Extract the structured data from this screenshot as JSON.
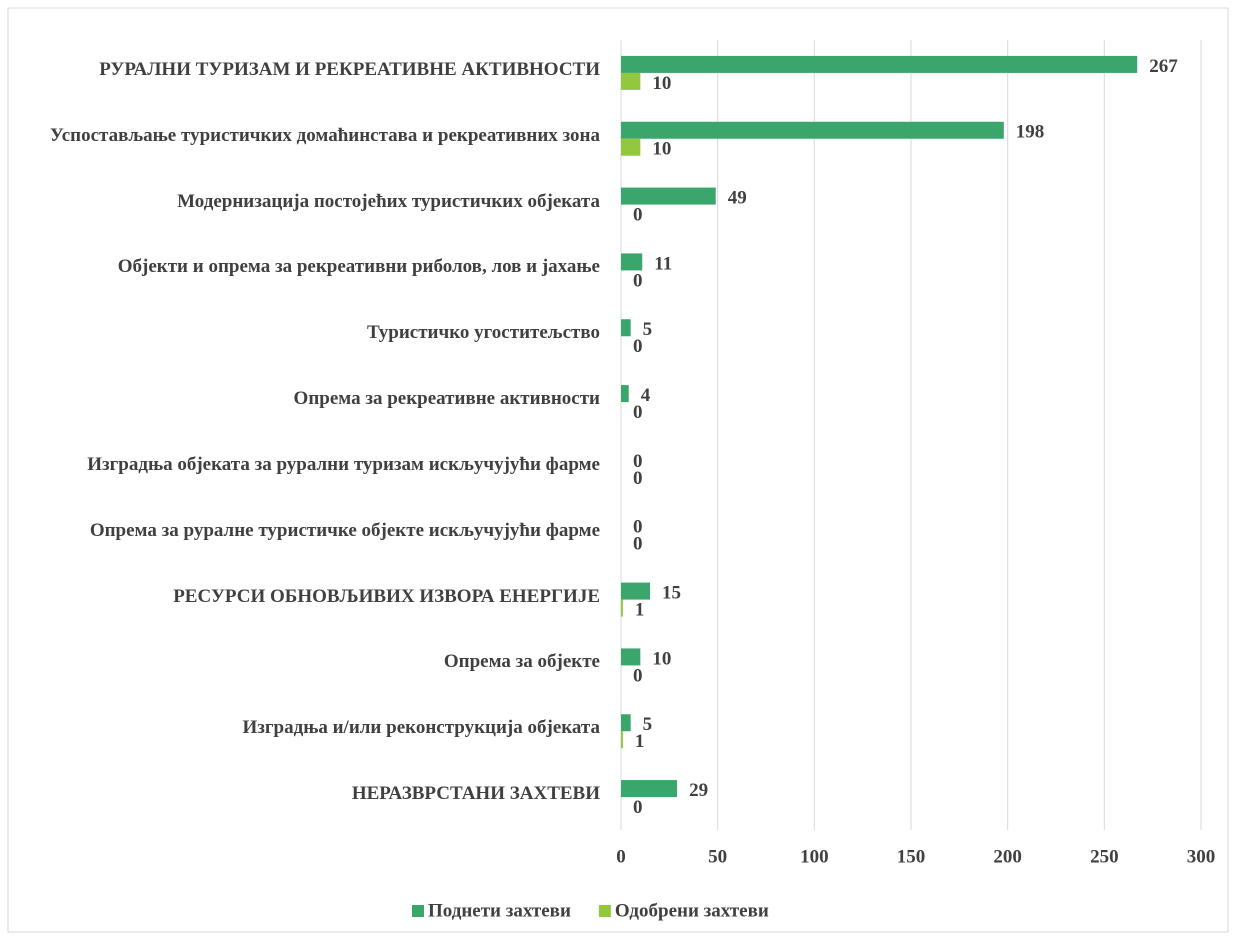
{
  "chart_data": {
    "type": "hbar",
    "categories": [
      "РУРАЛНИ ТУРИЗАМ И РЕКРЕАТИВНЕ АКТИВНОСТИ",
      "Успостављање туристичких домаћинстава и рекреативних зона",
      "Модернизација постојећих туристичких објеката",
      "Објекти и опрема за рекреативни риболов, лов и јахање",
      "Туристичко угоститељство",
      "Опрема за рекреативне активности",
      "Изградња објеката за рурални туризам искључујући фарме",
      "Опрема за руралне туристичке објекте искључујући фарме",
      "РЕСУРСИ ОБНОВЉИВИХ ИЗВОРА ЕНЕРГИЈЕ",
      "Опрема за објекте",
      "Изградња и/или реконструкција објеката",
      "НЕРАЗВРСТАНИ ЗАХТЕВИ"
    ],
    "series": [
      {
        "name": "Поднети захтеви",
        "color": "#3aa66c",
        "values": [
          267,
          198,
          49,
          11,
          5,
          4,
          0,
          0,
          15,
          10,
          5,
          29
        ]
      },
      {
        "name": "Одобрени захтеви",
        "color": "#92c83e",
        "values": [
          10,
          10,
          0,
          0,
          0,
          0,
          0,
          0,
          1,
          0,
          1,
          0
        ]
      }
    ],
    "xlim": [
      0,
      300
    ],
    "xticks": [
      0,
      50,
      100,
      150,
      200,
      250,
      300
    ],
    "grid": true,
    "legend": "bottom"
  }
}
